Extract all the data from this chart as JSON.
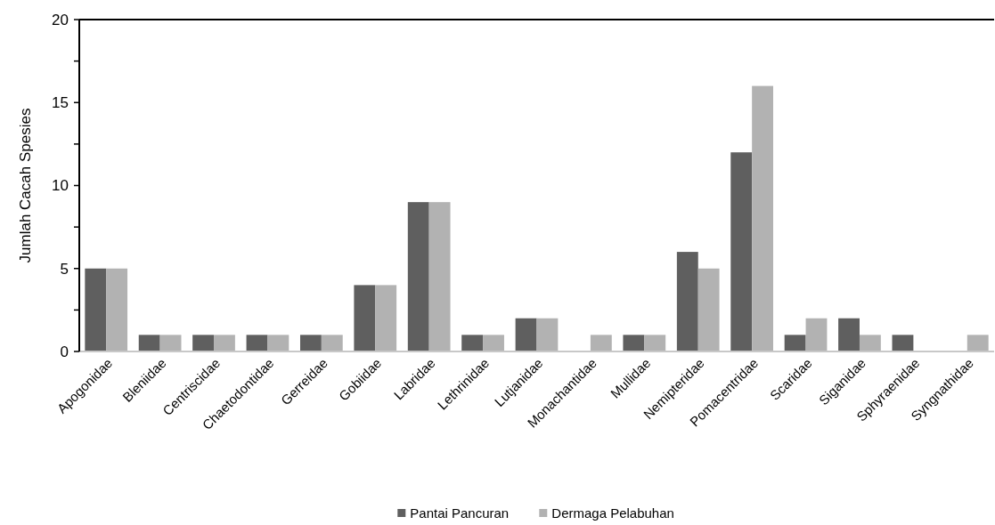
{
  "chart_data": {
    "type": "bar",
    "ylabel": "Jumlah Cacah Spesies",
    "categories": [
      "Apogonidae",
      "Bleniidae",
      "Centriscidae",
      "Chaetodontidae",
      "Gerreidae",
      "Gobiidae",
      "Labridae",
      "Lethrinidae",
      "Lutjanidae",
      "Monachantidae",
      "Mullidae",
      "Nemipteridae",
      "Pomacentridae",
      "Scaridae",
      "Siganidae",
      "Sphyraenidae",
      "Syngnathidae"
    ],
    "series": [
      {
        "name": "Pantai Pancuran",
        "color": "#5f5f5f",
        "values": [
          5,
          1,
          1,
          1,
          1,
          4,
          9,
          1,
          2,
          0,
          1,
          6,
          12,
          1,
          2,
          1,
          0
        ]
      },
      {
        "name": "Dermaga Pelabuhan",
        "color": "#b2b2b2",
        "values": [
          5,
          1,
          1,
          1,
          1,
          4,
          9,
          1,
          2,
          1,
          1,
          5,
          16,
          2,
          1,
          0,
          1
        ]
      }
    ],
    "ylim": [
      0,
      20
    ],
    "yticks": [
      0,
      {
        "value": 2.5,
        "label": null
      },
      5,
      {
        "value": 7.5,
        "label": null
      },
      10,
      {
        "value": 12.5,
        "label": null
      },
      15,
      {
        "value": 17.5,
        "label": null
      },
      20
    ],
    "grid": false,
    "legend": "bottom"
  }
}
